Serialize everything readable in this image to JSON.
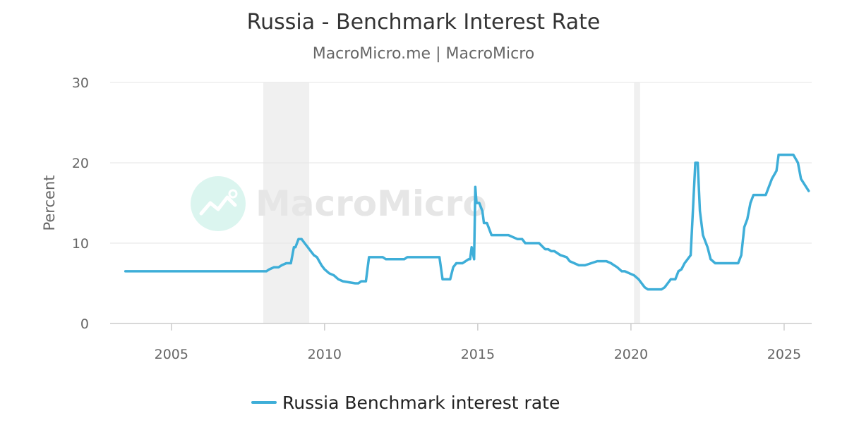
{
  "header": {
    "title": "Russia - Benchmark Interest Rate",
    "subtitle": "MacroMicro.me | MacroMicro"
  },
  "watermark": {
    "text": "MacroMicro",
    "icon": "macromicro-logo-icon"
  },
  "colors": {
    "series": "#3eaed8",
    "grid": "#e6e6e6",
    "recession": "#f0f0f0",
    "text": "#666666"
  },
  "chart_data": {
    "type": "line",
    "title": "Russia - Benchmark Interest Rate",
    "ylabel": "Percent",
    "xlim": [
      2003.0,
      2025.9
    ],
    "ylim": [
      0,
      30
    ],
    "y_ticks": [
      "0",
      "10",
      "20",
      "30"
    ],
    "x_ticks": [
      "2005",
      "2010",
      "2015",
      "2020",
      "2025"
    ],
    "grid": true,
    "legend_position": "bottom",
    "shaded_periods": [
      [
        2008.0,
        2009.5
      ],
      [
        2020.1,
        2020.3
      ]
    ],
    "series": [
      {
        "name": "Russia Benchmark interest rate",
        "x": [
          2003.5,
          2004.0,
          2005.0,
          2006.0,
          2007.0,
          2008.0,
          2008.1,
          2008.2,
          2008.35,
          2008.5,
          2008.6,
          2008.75,
          2008.9,
          2009.0,
          2009.05,
          2009.15,
          2009.25,
          2009.35,
          2009.45,
          2009.55,
          2009.65,
          2009.75,
          2009.9,
          2010.0,
          2010.15,
          2010.3,
          2010.45,
          2010.6,
          2011.0,
          2011.1,
          2011.2,
          2011.35,
          2011.45,
          2011.55,
          2011.7,
          2011.9,
          2012.0,
          2012.3,
          2012.6,
          2012.7,
          2012.8,
          2013.0,
          2013.5,
          2013.75,
          2013.85,
          2014.0,
          2014.1,
          2014.2,
          2014.3,
          2014.5,
          2014.7,
          2014.75,
          2014.8,
          2014.88,
          2014.92,
          2014.96,
          2015.05,
          2015.15,
          2015.2,
          2015.3,
          2015.4,
          2015.45,
          2015.55,
          2015.7,
          2016.0,
          2016.3,
          2016.45,
          2016.55,
          2016.7,
          2016.8,
          2017.0,
          2017.2,
          2017.3,
          2017.4,
          2017.5,
          2017.7,
          2017.9,
          2018.0,
          2018.15,
          2018.3,
          2018.5,
          2018.7,
          2018.9,
          2019.0,
          2019.2,
          2019.35,
          2019.45,
          2019.55,
          2019.7,
          2019.8,
          2019.95,
          2020.1,
          2020.25,
          2020.35,
          2020.45,
          2020.55,
          2020.7,
          2021.0,
          2021.1,
          2021.2,
          2021.3,
          2021.45,
          2021.55,
          2021.65,
          2021.75,
          2021.85,
          2021.95,
          2022.1,
          2022.18,
          2022.25,
          2022.35,
          2022.5,
          2022.6,
          2022.75,
          2023.0,
          2023.5,
          2023.6,
          2023.7,
          2023.8,
          2023.9,
          2024.0,
          2024.2,
          2024.4,
          2024.6,
          2024.75,
          2024.82,
          2025.0,
          2025.3,
          2025.45,
          2025.55,
          2025.8
        ],
        "y": [
          6.5,
          6.5,
          6.5,
          6.5,
          6.5,
          6.5,
          6.5,
          6.75,
          7.0,
          7.0,
          7.25,
          7.5,
          7.5,
          9.5,
          9.5,
          10.5,
          10.5,
          10.0,
          9.5,
          9.0,
          8.5,
          8.25,
          7.25,
          6.75,
          6.25,
          6.0,
          5.5,
          5.25,
          5.0,
          5.0,
          5.25,
          5.25,
          8.25,
          8.25,
          8.25,
          8.25,
          8.0,
          8.0,
          8.0,
          8.25,
          8.25,
          8.25,
          8.25,
          8.25,
          5.5,
          5.5,
          5.5,
          7.0,
          7.5,
          7.5,
          8.0,
          8.0,
          9.5,
          8.0,
          17.0,
          15.0,
          15.0,
          14.0,
          12.5,
          12.5,
          11.5,
          11.0,
          11.0,
          11.0,
          11.0,
          10.5,
          10.5,
          10.0,
          10.0,
          10.0,
          10.0,
          9.25,
          9.25,
          9.0,
          9.0,
          8.5,
          8.25,
          7.75,
          7.5,
          7.25,
          7.25,
          7.5,
          7.75,
          7.75,
          7.75,
          7.5,
          7.25,
          7.0,
          6.5,
          6.5,
          6.25,
          6.0,
          5.5,
          5.0,
          4.5,
          4.25,
          4.25,
          4.25,
          4.5,
          5.0,
          5.5,
          5.5,
          6.5,
          6.75,
          7.5,
          8.0,
          8.5,
          20.0,
          20.0,
          14.0,
          11.0,
          9.5,
          8.0,
          7.5,
          7.5,
          7.5,
          8.5,
          12.0,
          13.0,
          15.0,
          16.0,
          16.0,
          16.0,
          18.0,
          19.0,
          21.0,
          21.0,
          21.0,
          20.0,
          18.0,
          16.5
        ]
      }
    ]
  }
}
